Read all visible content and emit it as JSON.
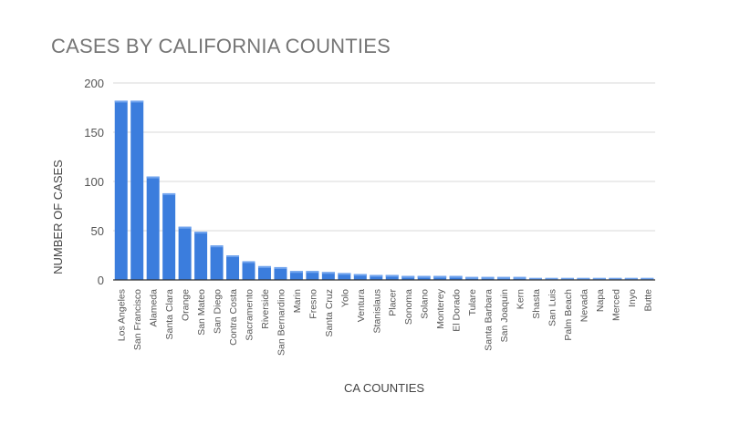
{
  "chart_data": {
    "type": "bar",
    "title": "CASES BY CALIFORNIA COUNTIES",
    "xlabel": "CA COUNTIES",
    "ylabel": "NUMBER OF CASES",
    "ylim": [
      0,
      200
    ],
    "yticks": [
      0,
      50,
      100,
      150,
      200
    ],
    "grid": true,
    "legend": "none",
    "bar_color": "#3b7ddd",
    "categories": [
      "Los Angeles",
      "San Francisco",
      "Alameda",
      "Santa Clara",
      "Orange",
      "San Mateo",
      "San Diego",
      "Contra Costa",
      "Sacramento",
      "Riverside",
      "San Bernardino",
      "Marin",
      "Fresno",
      "Santa Cruz",
      "Yolo",
      "Ventura",
      "Stanislaus",
      "Placer",
      "Sonoma",
      "Solano",
      "Monterey",
      "El Dorado",
      "Tulare",
      "Santa Barbara",
      "San Joaquin",
      "Kern",
      "Shasta",
      "San Luis",
      "Palm Beach",
      "Nevada",
      "Napa",
      "Merced",
      "Inyo",
      "Butte"
    ],
    "values": [
      182,
      182,
      105,
      88,
      54,
      49,
      35,
      25,
      19,
      14,
      13,
      9,
      9,
      8,
      7,
      6,
      5,
      5,
      4,
      4,
      4,
      4,
      3,
      3,
      3,
      3,
      2,
      2,
      2,
      2,
      2,
      2,
      2,
      2
    ]
  }
}
